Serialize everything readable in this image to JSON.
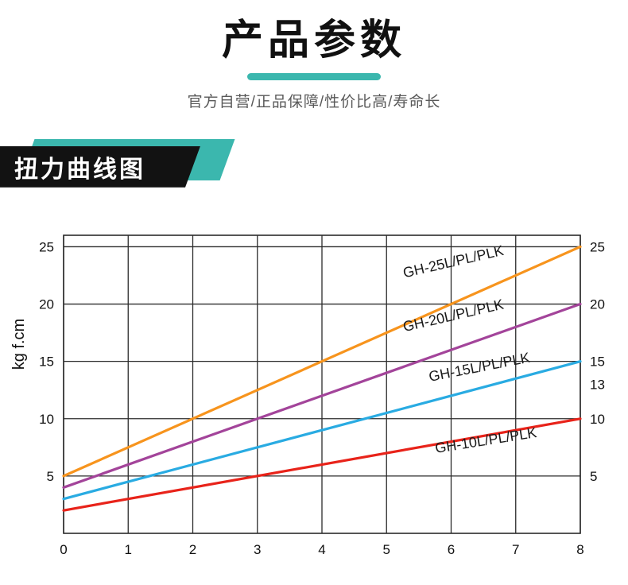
{
  "page": {
    "title": "产品参数",
    "subtitle": "官方自营/正品保障/性价比高/寿命长",
    "section_banner": "扭力曲线图"
  },
  "colors": {
    "accent_teal": "#3bb7ae",
    "banner_black": "#121212",
    "grid_line": "#2b2b2b",
    "tick_text": "#111111"
  },
  "chart_data": {
    "type": "line",
    "title": "",
    "xlabel": "",
    "ylabel": "kg f.cm",
    "xlim": [
      0,
      8
    ],
    "ylim": [
      0,
      26
    ],
    "x_ticks": [
      0,
      1,
      2,
      3,
      4,
      5,
      6,
      7,
      8
    ],
    "y_ticks_left": [
      5,
      10,
      15,
      20,
      25
    ],
    "y_ticks_right": [
      5,
      10,
      13,
      15,
      20,
      25
    ],
    "grid": true,
    "legend_position": "inline-labels-on-lines",
    "series": [
      {
        "name": "GH-25L/PL/PLK",
        "color": "#F7941D",
        "points": [
          [
            0,
            5
          ],
          [
            8,
            25
          ]
        ],
        "label": {
          "x": 6.05,
          "y": 23.3,
          "rotate": -13
        }
      },
      {
        "name": "GH-20L/PL/PLK",
        "color": "#A3449A",
        "points": [
          [
            0,
            4
          ],
          [
            8,
            20
          ]
        ],
        "label": {
          "x": 6.05,
          "y": 18.6,
          "rotate": -13
        }
      },
      {
        "name": "GH-15L/PL/PLK",
        "color": "#29ABE2",
        "points": [
          [
            0,
            3
          ],
          [
            8,
            15
          ]
        ],
        "label": {
          "x": 6.45,
          "y": 14.1,
          "rotate": -11
        }
      },
      {
        "name": "GH-10L/PL/PLK",
        "color": "#E8231A",
        "points": [
          [
            0,
            2
          ],
          [
            8,
            10
          ]
        ],
        "label": {
          "x": 6.55,
          "y": 7.7,
          "rotate": -9
        }
      }
    ]
  }
}
